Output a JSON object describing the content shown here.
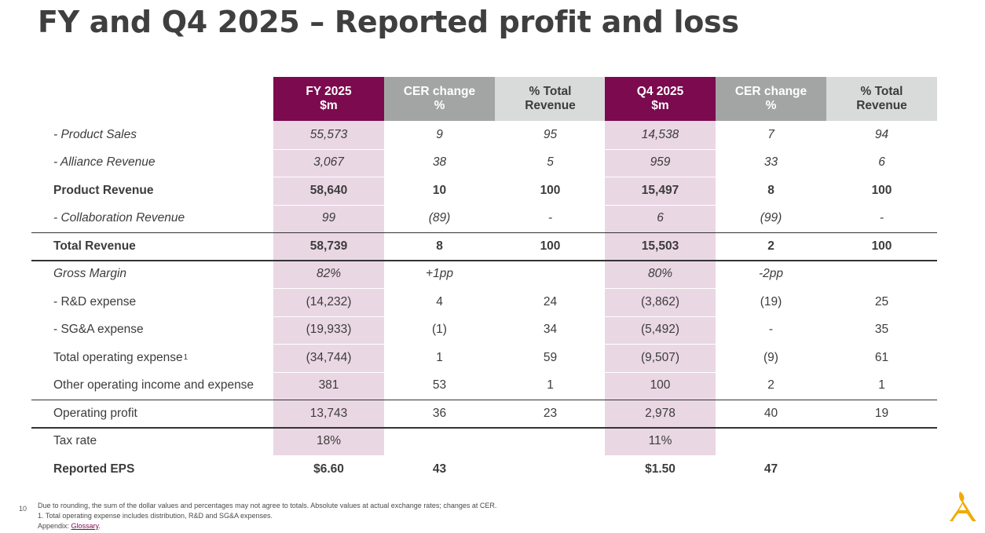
{
  "title": "FY and Q4 2025 – Reported profit and loss",
  "headers": [
    {
      "line1": "FY 2025",
      "line2": "$m"
    },
    {
      "line1": "CER change",
      "line2": "%"
    },
    {
      "line1": "% Total",
      "line2": "Revenue"
    },
    {
      "line1": "Q4 2025",
      "line2": "$m"
    },
    {
      "line1": "CER change",
      "line2": "%"
    },
    {
      "line1": "% Total",
      "line2": "Revenue"
    }
  ],
  "rows": [
    {
      "label": "- Product Sales",
      "values": [
        "55,573",
        "9",
        "95",
        "14,538",
        "7",
        "94"
      ]
    },
    {
      "label": "- Alliance Revenue",
      "values": [
        "3,067",
        "38",
        "5",
        "959",
        "33",
        "6"
      ]
    },
    {
      "label": "Product Revenue",
      "values": [
        "58,640",
        "10",
        "100",
        "15,497",
        "8",
        "100"
      ]
    },
    {
      "label": "- Collaboration Revenue",
      "values": [
        "99",
        "(89)",
        "-",
        "6",
        "(99)",
        "-"
      ]
    },
    {
      "label": "Total Revenue",
      "values": [
        "58,739",
        "8",
        "100",
        "15,503",
        "2",
        "100"
      ]
    },
    {
      "label": "Gross Margin",
      "values": [
        "82%",
        "+1pp",
        "",
        "80%",
        "-2pp",
        ""
      ]
    },
    {
      "label": "- R&D expense",
      "values": [
        "(14,232)",
        "4",
        "24",
        "(3,862)",
        "(19)",
        "25"
      ]
    },
    {
      "label": "- SG&A expense",
      "values": [
        "(19,933)",
        "(1)",
        "34",
        "(5,492)",
        "-",
        "35"
      ]
    },
    {
      "label": "Total operating expense",
      "label_sup": "1",
      "values": [
        "(34,744)",
        "1",
        "59",
        "(9,507)",
        "(9)",
        "61"
      ]
    },
    {
      "label": "Other operating income and expense",
      "values": [
        "381",
        "53",
        "1",
        "100",
        "2",
        "1"
      ]
    },
    {
      "label": "Operating profit",
      "values": [
        "13,743",
        "36",
        "23",
        "2,978",
        "40",
        "19"
      ]
    },
    {
      "label": "Tax rate",
      "values": [
        "18%",
        "",
        "",
        "11%",
        "",
        ""
      ]
    },
    {
      "label": "Reported EPS",
      "values": [
        "$6.60",
        "43",
        "",
        "$1.50",
        "47",
        ""
      ]
    }
  ],
  "footnotes": {
    "page_number": "10",
    "line1": "Due to rounding, the sum of the dollar values and percentages may not agree to totals. Absolute values at actual exchange rates; changes at CER.",
    "line2": "1. Total operating expense includes distribution, R&D and SG&A expenses.",
    "line3_prefix": "Appendix: ",
    "line3_link": "Glossary",
    "line3_suffix": "."
  },
  "colors": {
    "plum": "#7b0a4f",
    "pink_highlight": "#ead7e4",
    "grey_header": "#a3a5a5",
    "light_header": "#d9dada",
    "logo_gold": "#f0ab00"
  },
  "logo_icon": "astrazeneca-logo-icon"
}
